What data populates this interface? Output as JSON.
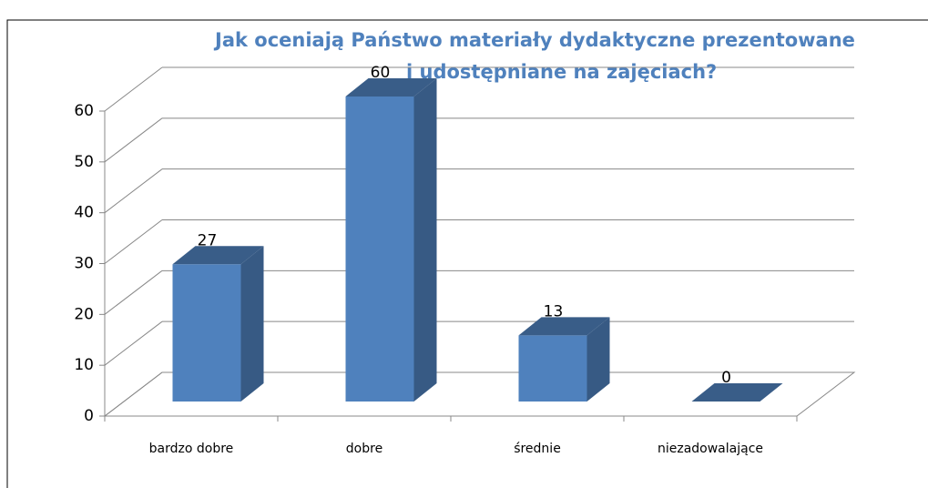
{
  "chart_data": {
    "type": "bar3d",
    "title": [
      "Jak oceniają Państwo materiały dydaktyczne prezentowane",
      "i udostępniane na zajęciach?"
    ],
    "categories": [
      "bardzo dobre",
      "dobre",
      "średnie",
      "niezadowalające"
    ],
    "values": [
      27,
      60,
      13,
      0
    ],
    "color": "#4f81bd",
    "ylim": [
      0,
      60
    ],
    "yticks": [
      0,
      10,
      20,
      30,
      40,
      50,
      60
    ],
    "grid": true
  }
}
